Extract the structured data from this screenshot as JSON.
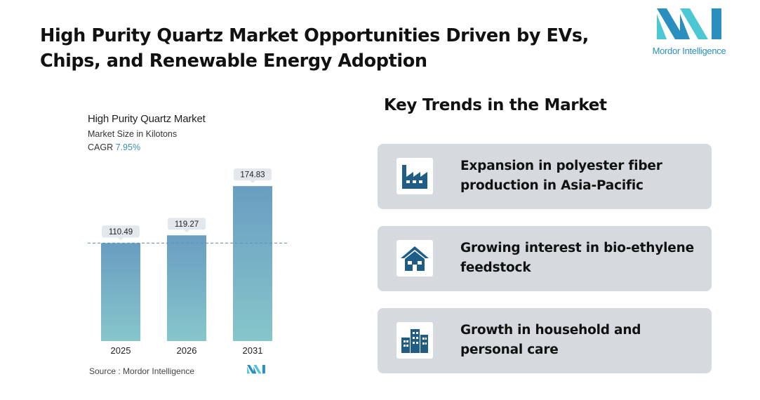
{
  "title_line1": "High Purity Quartz Market Opportunities Driven by EVs,",
  "title_line2": "Chips, and Renewable Energy Adoption",
  "brand": {
    "text": "Mordor Intelligence",
    "color": "#2a8fbf",
    "accent": "#4cc7d4"
  },
  "chart": {
    "title": "High Purity Quartz Market",
    "subtitle": "Market Size in Kilotons",
    "cagr_label": "CAGR",
    "cagr_value": "7.95%",
    "source": "Source :  Mordor Intelligence"
  },
  "chart_data": {
    "type": "bar",
    "title": "High Purity Quartz Market",
    "subtitle": "Market Size in Kilotons",
    "categories": [
      "2025",
      "2026",
      "2031"
    ],
    "values": [
      110.49,
      119.27,
      174.83
    ],
    "value_labels": [
      "110.49",
      "119.27",
      "174.83"
    ],
    "ylim": [
      0,
      190
    ],
    "reference_line": 110.49,
    "grid": false,
    "bar_color_top": "#6a9dc1",
    "bar_color_bottom": "#86c6cb"
  },
  "trends": {
    "title": "Key Trends in the Market",
    "items": [
      {
        "icon": "factory-icon",
        "line1": "Expansion in polyester fiber",
        "line2": "production in Asia-Pacific"
      },
      {
        "icon": "house-icon",
        "line1": "Growing interest in bio-ethylene",
        "line2": "feedstock"
      },
      {
        "icon": "buildings-icon",
        "line1": "Growth in household and",
        "line2": "personal care"
      }
    ],
    "icon_color": "#1f5d86"
  }
}
